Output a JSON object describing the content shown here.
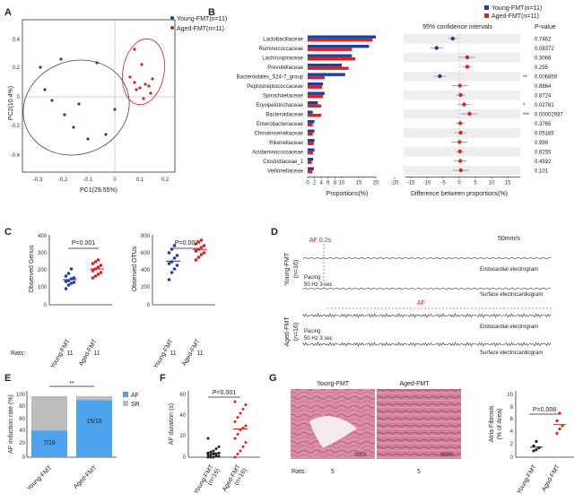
{
  "colors": {
    "young": "#1f3f9f",
    "aged": "#e02020",
    "af_bar": "#4da3ee",
    "sr_bar": "#bcbcbc",
    "star": "#e02020"
  },
  "panel_labels": [
    "A",
    "B",
    "C",
    "D",
    "E",
    "F",
    "G"
  ],
  "legend": {
    "young": "Young-FMT(n=11)",
    "aged": "Aged-FMT(n=11)"
  },
  "panelA": {
    "xlabel": "PC1(29.55%)",
    "ylabel": "PC2(10.4%)",
    "xticks": [
      "-0.3",
      "-0.2",
      "-0.1",
      "0",
      "0.1",
      "0.2"
    ],
    "yticks": [
      "0.4",
      "0.2",
      "0",
      "-0.2",
      "-0.4"
    ]
  },
  "panelB": {
    "ci_title": "95% confidence intervals",
    "p_header": "P-value",
    "xlabel_left": "Proportions(%)",
    "xlabel_right": "Difference between proportions(%)",
    "left_ticks": [
      "0",
      "2",
      "4",
      "6",
      "8",
      "10",
      "15",
      "20"
    ],
    "right_ticks": [
      "-20",
      "-15",
      "-10",
      "-5",
      "0",
      "5",
      "10",
      "15"
    ],
    "taxa": [
      {
        "name": "Lactobacillaceae",
        "p": "0.7462",
        "sig": ""
      },
      {
        "name": "Ruminococcaceae",
        "p": "0.08372",
        "sig": ""
      },
      {
        "name": "Lachnospiraceae",
        "p": "0.3066",
        "sig": ""
      },
      {
        "name": "Prevotellaceae",
        "p": "0.295",
        "sig": ""
      },
      {
        "name": "Bacteroidales_S24-7_group",
        "p": "0.006859",
        "sig": "**"
      },
      {
        "name": "Peptostreptococcaceae",
        "p": "0.8864",
        "sig": ""
      },
      {
        "name": "Spirochaetaceae",
        "p": "0.8724",
        "sig": ""
      },
      {
        "name": "Erysipelotrichaceae",
        "p": "0.02781",
        "sig": "*"
      },
      {
        "name": "Bacteroidaceae",
        "p": "0.00002937",
        "sig": "***"
      },
      {
        "name": "Enterobacteriaceae",
        "p": "0.3765",
        "sig": ""
      },
      {
        "name": "Christensenellaceae",
        "p": "0.05185",
        "sig": ""
      },
      {
        "name": "Rikenellaceae",
        "p": "0.999",
        "sig": ""
      },
      {
        "name": "Acidaminococcaceae",
        "p": "0.6255",
        "sig": ""
      },
      {
        "name": "Clostridiaceae_1",
        "p": "0.4592",
        "sig": ""
      },
      {
        "name": "Veillonellaceae",
        "p": "0.101",
        "sig": ""
      }
    ]
  },
  "panelC": {
    "left": {
      "ylabel": "Observed Genus",
      "p": "P=0.001",
      "yticks": [
        "400",
        "300",
        "200",
        "100",
        "0"
      ]
    },
    "right": {
      "ylabel": "Observed OTUs",
      "p": "P=0.007",
      "yticks": [
        "800",
        "600",
        "400",
        "200",
        "0"
      ]
    },
    "groups": [
      "Young-FMT",
      "Aged-FMT"
    ],
    "rats_label": "Rats:",
    "rats": [
      "11",
      "11",
      "11",
      "11"
    ]
  },
  "panelD": {
    "speed": "50mm/s",
    "af_top": "AF 0.2s",
    "af_bottom": "AF",
    "young_label": "Young-FMT",
    "aged_label": "Aged-FMT",
    "n": "(n=16)",
    "pacing": "Pacing",
    "pacing_params": "50 Hz 3 sec",
    "endo": "Endocardial electrogram",
    "surface": "Surface electrocardiogram"
  },
  "panelE": {
    "ylabel": "AF induction rate (%)",
    "yticks": [
      "100",
      "80",
      "60",
      "40",
      "20",
      "0"
    ],
    "legend_af": "AF",
    "legend_sr": "SR",
    "young_label": "7/16",
    "aged_label": "15/16",
    "young_af_pct": 43.75,
    "aged_af_pct": 93.75,
    "sig": "**",
    "groups": [
      "Young-FMT",
      "Aged-FMT"
    ]
  },
  "panelF": {
    "ylabel": "AF duration (s)",
    "yticks": [
      "60",
      "40",
      "20",
      "0"
    ],
    "p": "P<0.001",
    "groups": [
      "Young-FMT",
      "Aged-FMT"
    ],
    "n": [
      "(n=16)",
      "(n=16)"
    ]
  },
  "panelG": {
    "young_title": "Young-FMT",
    "aged_title": "Aged-FMT",
    "mag": "200X",
    "rats_label": "Rats:",
    "rats": [
      "5",
      "5"
    ],
    "ylabel": "Atria Fibrosis",
    "ylabel2": "(% of Area)",
    "yticks": [
      "10",
      "8",
      "6",
      "4",
      "2",
      "0"
    ],
    "p": "P=0.008",
    "groups": [
      "Young-FMT",
      "Aged-FMT"
    ]
  }
}
